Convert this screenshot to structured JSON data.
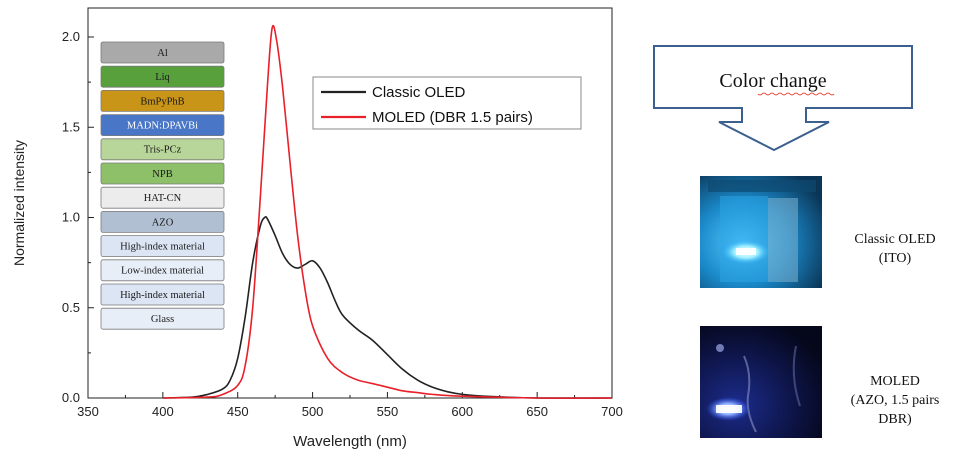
{
  "chart_data": {
    "type": "line",
    "xlabel": "Wavelength (nm)",
    "ylabel": "Normalized intensity",
    "xlim": [
      350,
      700
    ],
    "ylim": [
      0,
      2.15
    ],
    "x_ticks": [
      350,
      400,
      450,
      500,
      550,
      600,
      650,
      700
    ],
    "y_ticks": [
      0.0,
      0.5,
      1.0,
      1.5,
      2.0
    ],
    "x_tick_labels": [
      "350",
      "400",
      "450",
      "500",
      "550",
      "600",
      "650",
      "700"
    ],
    "y_tick_labels": [
      "0.0",
      "0.5",
      "1.0",
      "1.5",
      "2.0"
    ],
    "grid": false,
    "legend_position": "top-right",
    "series": [
      {
        "name": "Classic OLED",
        "color": "#222222",
        "x": [
          400,
          420,
          430,
          440,
          445,
          450,
          455,
          460,
          465,
          468,
          470,
          475,
          480,
          485,
          490,
          495,
          500,
          505,
          510,
          515,
          520,
          530,
          540,
          550,
          560,
          570,
          580,
          590,
          600,
          620,
          650,
          700
        ],
        "y": [
          0.0,
          0.005,
          0.02,
          0.05,
          0.1,
          0.22,
          0.45,
          0.75,
          0.95,
          1.0,
          0.99,
          0.9,
          0.8,
          0.74,
          0.72,
          0.74,
          0.76,
          0.72,
          0.64,
          0.54,
          0.46,
          0.38,
          0.32,
          0.24,
          0.16,
          0.1,
          0.06,
          0.035,
          0.02,
          0.008,
          0.0,
          0.0
        ]
      },
      {
        "name": "MOLED (DBR 1.5 pairs)",
        "color": "#e8202a",
        "x": [
          400,
          430,
          440,
          450,
          455,
          460,
          465,
          470,
          473,
          476,
          480,
          485,
          490,
          495,
          500,
          510,
          520,
          530,
          540,
          550,
          560,
          570,
          580,
          600,
          650,
          700
        ],
        "y": [
          0.0,
          0.005,
          0.02,
          0.07,
          0.18,
          0.5,
          1.1,
          1.75,
          2.05,
          1.98,
          1.72,
          1.3,
          0.9,
          0.6,
          0.4,
          0.22,
          0.14,
          0.1,
          0.08,
          0.06,
          0.04,
          0.03,
          0.02,
          0.01,
          0.0,
          0.0
        ]
      }
    ]
  },
  "layer_stack": [
    {
      "label": "Al",
      "color": "#a9a9a9"
    },
    {
      "label": "Liq",
      "color": "#58a03c"
    },
    {
      "label": "BmPyPhB",
      "color": "#c89518"
    },
    {
      "label": "MADN:DPAVBi",
      "color": "#4a76c8"
    },
    {
      "label": "Tris-PCz",
      "color": "#b9d69a"
    },
    {
      "label": "NPB",
      "color": "#8ec06a"
    },
    {
      "label": "HAT-CN",
      "color": "#ececec"
    },
    {
      "label": "AZO",
      "color": "#b1bfd3"
    },
    {
      "label": "High-index material",
      "color": "#dbe5f4"
    },
    {
      "label": "Low-index material",
      "color": "#e8eef8"
    },
    {
      "label": "High-index material",
      "color": "#dbe5f4"
    },
    {
      "label": "Glass",
      "color": "#e8eef8"
    }
  ],
  "callout": {
    "text": "Color change"
  },
  "images": [
    {
      "caption_lines": [
        "Classic OLED",
        "(ITO)"
      ]
    },
    {
      "caption_lines": [
        "MOLED",
        "(AZO, 1.5 pairs",
        "DBR)"
      ]
    }
  ]
}
